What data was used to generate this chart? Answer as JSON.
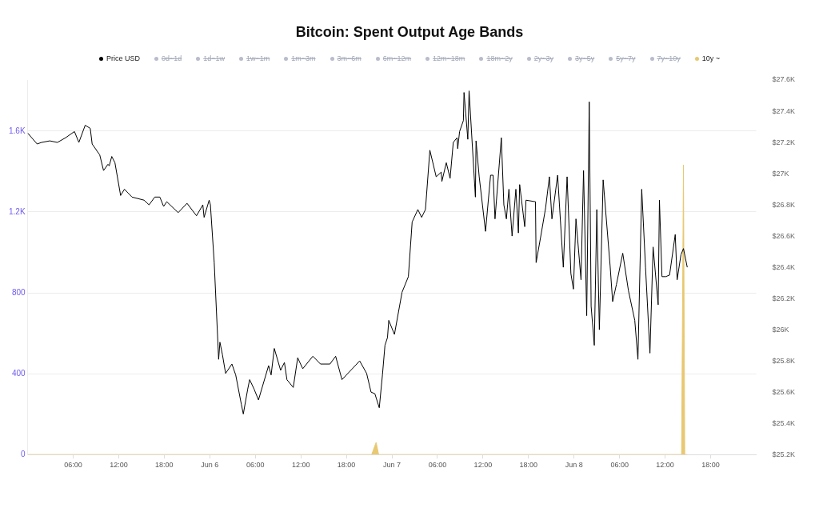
{
  "chart_data": {
    "type": "line",
    "title": "Bitcoin: Spent Output Age Bands",
    "xlim": [
      "--06-05T00:00",
      "--06-09T00:00"
    ],
    "xticks": [
      {
        "value": "--06-05T06:00",
        "label": "06:00"
      },
      {
        "value": "--06-05T12:00",
        "label": "12:00"
      },
      {
        "value": "--06-05T18:00",
        "label": "18:00"
      },
      {
        "value": "--06-06T00:00",
        "label": "Jun 6"
      },
      {
        "value": "--06-06T06:00",
        "label": "06:00"
      },
      {
        "value": "--06-06T12:00",
        "label": "12:00"
      },
      {
        "value": "--06-06T18:00",
        "label": "18:00"
      },
      {
        "value": "--06-07T00:00",
        "label": "Jun 7"
      },
      {
        "value": "--06-07T06:00",
        "label": "06:00"
      },
      {
        "value": "--06-07T12:00",
        "label": "12:00"
      },
      {
        "value": "--06-07T18:00",
        "label": "18:00"
      },
      {
        "value": "--06-08T00:00",
        "label": "Jun 8"
      },
      {
        "value": "--06-08T06:00",
        "label": "06:00"
      },
      {
        "value": "--06-08T12:00",
        "label": "12:00"
      },
      {
        "value": "--06-08T18:00",
        "label": "18:00"
      }
    ],
    "ylim": [
      0,
      1853
    ],
    "yticks": [
      0,
      400,
      800,
      {
        "value": 1200,
        "label": "1.2K"
      },
      {
        "value": 1600,
        "label": "1.6K"
      }
    ],
    "y2lim": [
      25200,
      27600
    ],
    "y2ticks": [
      {
        "value": 25200,
        "label": "$25.2K"
      },
      {
        "value": 25400,
        "label": "$25.4K"
      },
      {
        "value": 25600,
        "label": "$25.6K"
      },
      {
        "value": 25800,
        "label": "$25.8K"
      },
      {
        "value": 26000,
        "label": "$26K"
      },
      {
        "value": 26200,
        "label": "$26.2K"
      },
      {
        "value": 26400,
        "label": "$26.4K"
      },
      {
        "value": 26600,
        "label": "$26.6K"
      },
      {
        "value": 26800,
        "label": "$26.8K"
      },
      {
        "value": 27000,
        "label": "$27K"
      },
      {
        "value": 27200,
        "label": "$27.2K"
      },
      {
        "value": 27400,
        "label": "$27.4K"
      },
      {
        "value": 27600,
        "label": "$27.6K"
      }
    ],
    "grid": "y",
    "legend": "top",
    "line_style": "solid",
    "series": [
      {
        "name": "Price USD",
        "axis": "y2",
        "color": "#000000",
        "x": [
          "--06-05T00:00",
          "--06-05T01:15",
          "--06-05T01:50",
          "--06-05T02:55",
          "--06-05T03:55",
          "--06-05T05:00",
          "--06-05T06:10",
          "--06-05T06:45",
          "--06-05T07:35",
          "--06-05T08:15",
          "--06-05T08:30",
          "--06-05T09:30",
          "--06-05T10:00",
          "--06-05T10:35",
          "--06-05T10:45",
          "--06-05T11:05",
          "--06-05T11:30",
          "--06-05T12:15",
          "--06-05T12:45",
          "--06-05T13:45",
          "--06-05T15:20",
          "--06-05T16:00",
          "--06-05T16:45",
          "--06-05T17:25",
          "--06-05T17:55",
          "--06-05T18:20",
          "--06-05T19:50",
          "--06-05T21:00",
          "--06-05T22:15",
          "--06-05T23:05",
          "--06-05T23:15",
          "--06-05T23:55",
          "--06-06T00:05",
          "--06-06T00:35",
          "--06-06T01:10",
          "--06-06T01:20",
          "--06-06T01:40",
          "--06-06T02:05",
          "--06-06T02:55",
          "--06-06T03:25",
          "--06-06T04:10",
          "--06-06T04:25",
          "--06-06T05:00",
          "--06-06T05:15",
          "--06-06T05:50",
          "--06-06T06:25",
          "--06-06T07:45",
          "--06-06T08:05",
          "--06-06T08:30",
          "--06-06T09:20",
          "--06-06T09:50",
          "--06-06T10:10",
          "--06-06T11:00",
          "--06-06T11:35",
          "--06-06T12:15",
          "--06-06T13:35",
          "--06-06T14:35",
          "--06-06T15:50",
          "--06-06T16:35",
          "--06-06T17:25",
          "--06-06T19:45",
          "--06-06T20:40",
          "--06-06T21:15",
          "--06-06T21:45",
          "--06-06T22:20",
          "--06-06T22:45",
          "--06-06T23:05",
          "--06-06T23:25",
          "--06-06T23:35",
          "--06-07T00:20",
          "--06-07T01:20",
          "--06-07T02:10",
          "--06-07T02:40",
          "--06-07T03:25",
          "--06-07T03:55",
          "--06-07T04:25",
          "--06-07T05:00",
          "--06-07T05:50",
          "--06-07T06:30",
          "--06-07T06:35",
          "--06-07T07:10",
          "--06-07T07:40",
          "--06-07T08:05",
          "--06-07T08:35",
          "--06-07T08:40",
          "--06-07T08:55",
          "--06-07T09:25",
          "--06-07T09:30",
          "--06-07T10:00",
          "--06-07T10:10",
          "--06-07T11:00",
          "--06-07T11:05",
          "--06-07T11:30",
          "--06-07T12:20",
          "--06-07T13:00",
          "--06-07T13:20",
          "--06-07T13:35",
          "--06-07T14:25",
          "--06-07T14:45",
          "--06-07T15:05",
          "--06-07T15:25",
          "--06-07T15:50",
          "--06-07T16:20",
          "--06-07T16:40",
          "--06-07T16:50",
          "--06-07T17:30",
          "--06-07T17:40",
          "--06-07T18:55",
          "--06-07T19:00",
          "--06-07T19:35",
          "--06-07T20:15",
          "--06-07T20:45",
          "--06-07T21:05",
          "--06-07T21:50",
          "--06-07T22:35",
          "--06-07T23:05",
          "--06-07T23:35",
          "--06-07T23:55",
          "--06-08T00:15",
          "--06-08T00:55",
          "--06-08T01:15",
          "--06-08T01:40",
          "--06-08T02:00",
          "--06-08T02:15",
          "--06-08T02:40",
          "--06-08T03:00",
          "--06-08T03:20",
          "--06-08T03:50",
          "--06-08T04:45",
          "--06-08T05:05",
          "--06-08T05:35",
          "--06-08T06:25",
          "--06-08T07:10",
          "--06-08T08:00",
          "--06-08T08:25",
          "--06-08T08:55",
          "--06-08T09:25",
          "--06-08T10:00",
          "--06-08T10:25",
          "--06-08T11:05",
          "--06-08T11:15",
          "--06-08T11:35",
          "--06-08T12:05",
          "--06-08T12:35",
          "--06-08T13:20",
          "--06-08T13:35",
          "--06-08T14:05",
          "--06-08T14:25",
          "--06-08T14:55"
        ],
        "values": [
          27260,
          27190,
          27200,
          27210,
          27200,
          27230,
          27270,
          27200,
          27310,
          27290,
          27190,
          27120,
          27020,
          27060,
          27050,
          27110,
          27070,
          26860,
          26900,
          26850,
          26830,
          26800,
          26850,
          26850,
          26790,
          26820,
          26750,
          26810,
          26730,
          26800,
          26720,
          26830,
          26800,
          26430,
          25810,
          25920,
          25840,
          25720,
          25780,
          25710,
          25520,
          25460,
          25620,
          25680,
          25620,
          25550,
          25770,
          25710,
          25880,
          25740,
          25790,
          25680,
          25630,
          25820,
          25750,
          25830,
          25780,
          25780,
          25830,
          25680,
          25800,
          25720,
          25600,
          25590,
          25500,
          25710,
          25900,
          25950,
          26060,
          25970,
          26240,
          26340,
          26690,
          26770,
          26720,
          26770,
          27150,
          26980,
          27010,
          26950,
          27070,
          26970,
          27200,
          27230,
          27160,
          27270,
          27340,
          27520,
          27220,
          27530,
          26850,
          27210,
          26980,
          26630,
          26990,
          26990,
          26710,
          27230,
          26800,
          26710,
          26900,
          26600,
          26900,
          26620,
          26930,
          26660,
          26830,
          26820,
          26430,
          26590,
          26780,
          26980,
          26710,
          26990,
          26400,
          26980,
          26360,
          26260,
          26710,
          26320,
          27020,
          26090,
          27460,
          26150,
          25900,
          26770,
          26000,
          26960,
          26410,
          26180,
          26290,
          26490,
          26250,
          26060,
          25810,
          26900,
          26400,
          25850,
          26530,
          26160,
          26830,
          26340,
          26340,
          26350,
          26610,
          26320,
          26480,
          26520,
          26400
        ]
      },
      {
        "name": "0d~1d",
        "color": "#b8bccb"
      },
      {
        "name": "1d~1w",
        "color": "#b8bccb"
      },
      {
        "name": "1w~1m",
        "color": "#b8bccb"
      },
      {
        "name": "1m~3m",
        "color": "#b8bccb"
      },
      {
        "name": "3m~6m",
        "color": "#b8bccb"
      },
      {
        "name": "6m~12m",
        "color": "#b8bccb"
      },
      {
        "name": "12m~18m",
        "color": "#b8bccb"
      },
      {
        "name": "18m~2y",
        "color": "#b8bccb"
      },
      {
        "name": "2y~3y",
        "color": "#b8bccb"
      },
      {
        "name": "3y~5y",
        "color": "#b8bccb"
      },
      {
        "name": "5y~7y",
        "color": "#b8bccb"
      },
      {
        "name": "7y~10y",
        "color": "#b8bccb"
      },
      {
        "name": "10y ~",
        "type": "area",
        "axis": "y",
        "color": "#e8c872",
        "x": [
          "--06-05T00:00",
          "--06-06T21:20",
          "--06-06T21:55",
          "--06-06T22:15",
          "--06-08T14:10",
          "--06-08T14:25",
          "--06-08T14:35",
          "--06-08T14:55"
        ],
        "values": [
          0,
          0,
          60,
          0,
          0,
          1433,
          0,
          0
        ]
      }
    ]
  }
}
